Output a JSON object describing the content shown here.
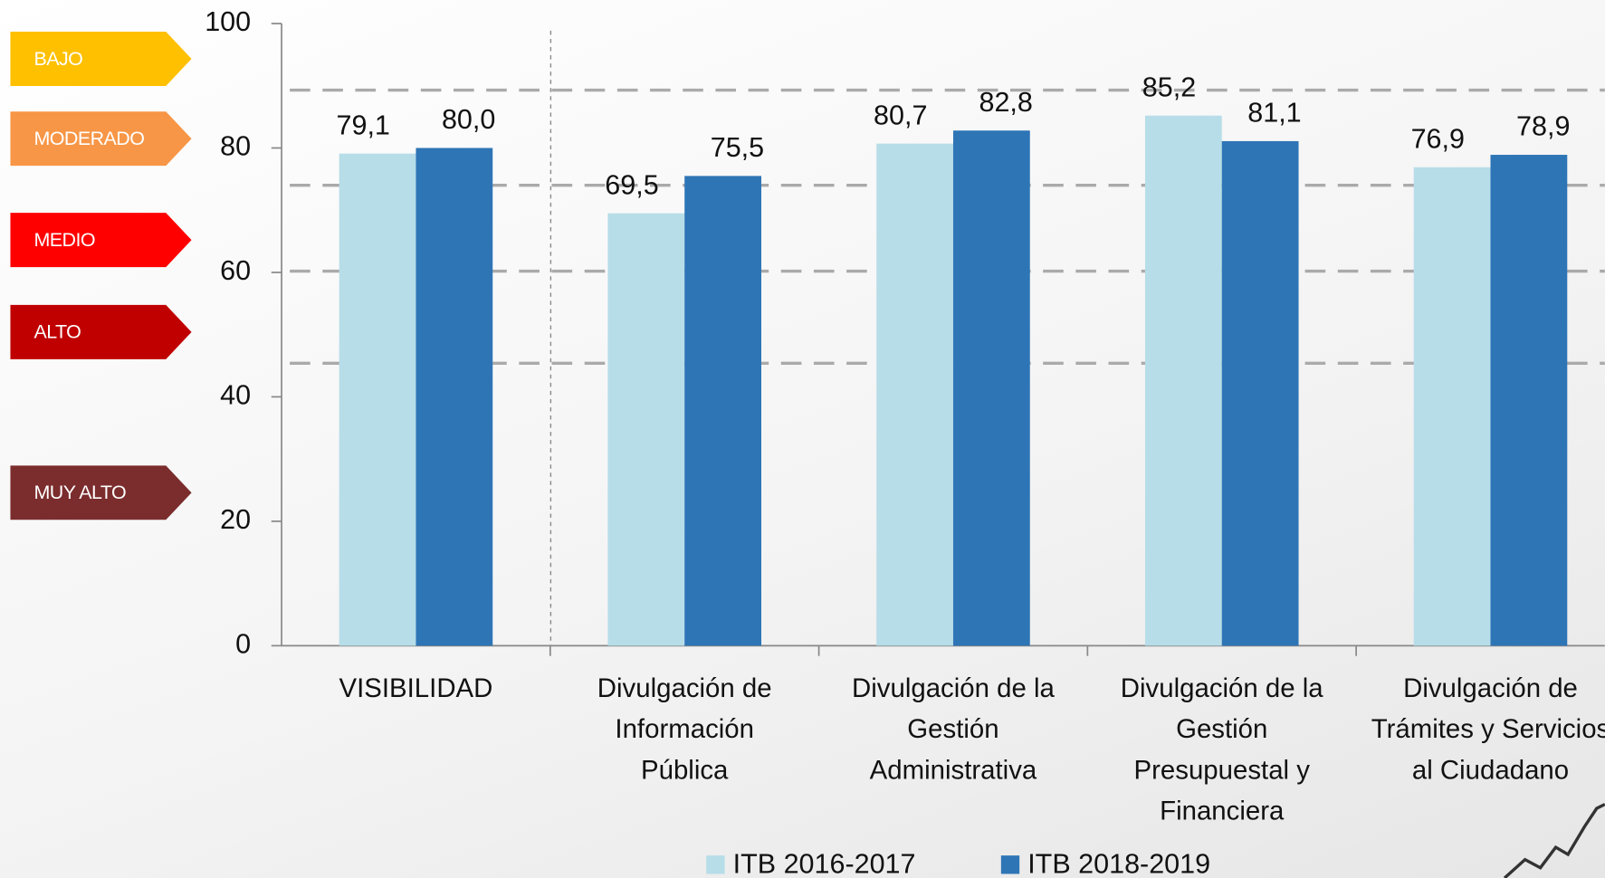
{
  "chart_data": {
    "type": "bar",
    "categories": [
      "VISIBILIDAD",
      "Divulgación de\nInformación\nPública",
      "Divulgación de  la\nGestión\nAdministrativa",
      "Divulgación de la\nGestión\nPresupuestal y\nFinanciera",
      "Divulgación de\nTrámites y Servicios\nal Ciudadano"
    ],
    "series": [
      {
        "name": "ITB 2016-2017",
        "color": "#b7dde8",
        "values": [
          79.1,
          69.5,
          80.7,
          85.2,
          76.9
        ],
        "value_labels": [
          "79,1",
          "69,5",
          "80,7",
          "85,2",
          "76,9"
        ]
      },
      {
        "name": "ITB 2018-2019",
        "color": "#2e75b6",
        "values": [
          80.0,
          75.5,
          82.8,
          81.1,
          78.9
        ],
        "value_labels": [
          "80,0",
          "75,5",
          "82,8",
          "81,1",
          "78,9"
        ]
      }
    ],
    "ylim": [
      0,
      100
    ],
    "yticks": [
      0,
      20,
      40,
      60,
      80,
      100
    ],
    "reference_lines": [
      89.3,
      74,
      60.2,
      45.4
    ],
    "risk_levels": [
      {
        "label": "BAJO",
        "color": "#ffc000"
      },
      {
        "label": "MODERADO",
        "color": "#f79646"
      },
      {
        "label": "MEDIO",
        "color": "#ff0000"
      },
      {
        "label": "ALTO",
        "color": "#c00000"
      },
      {
        "label": "MUY ALTO",
        "color": "#7b2c2c"
      }
    ]
  }
}
